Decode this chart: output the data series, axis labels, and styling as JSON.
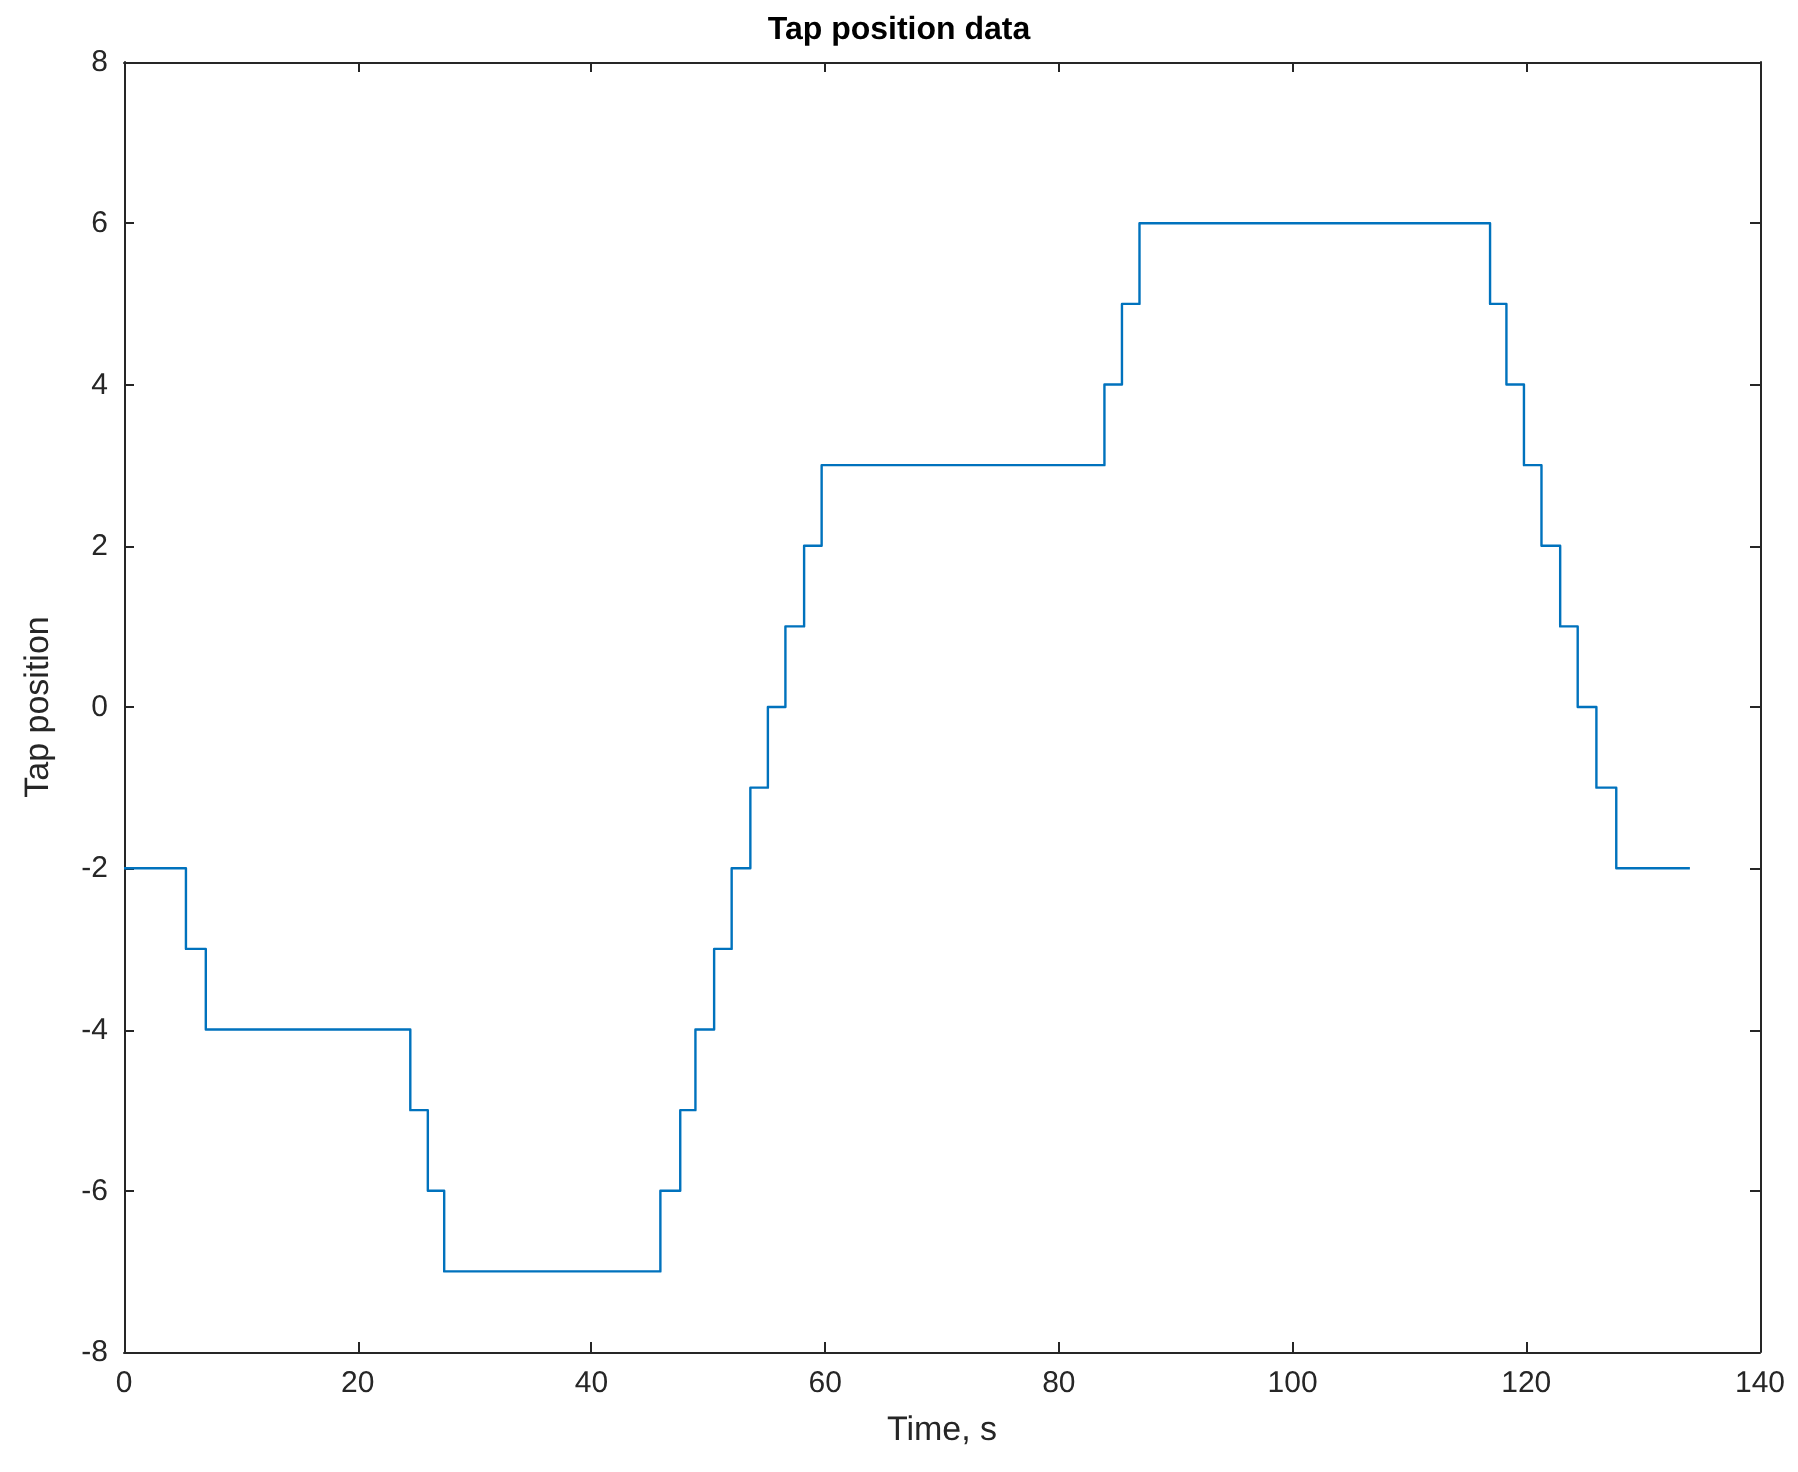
{
  "chart_data": {
    "type": "step",
    "title": "Tap position data",
    "xlabel": "Time, s",
    "ylabel": "Tap position",
    "xlim": [
      0,
      140
    ],
    "xticks": [
      0,
      20,
      40,
      60,
      80,
      100,
      120,
      140
    ],
    "ylim": [
      -8,
      8
    ],
    "yticks": [
      -8,
      -6,
      -4,
      -2,
      0,
      2,
      4,
      6,
      8
    ],
    "grid": false,
    "marker": "none",
    "line_style": "solid",
    "series": [
      {
        "color": "#0072bd",
        "x": [
          0,
          5.3,
          7,
          24.5,
          26,
          27.4,
          45.9,
          47.6,
          48.9,
          50.5,
          52,
          53.6,
          55.1,
          56.6,
          58.2,
          59.7,
          83.9,
          85.4,
          86.9,
          116.9,
          118.3,
          119.8,
          121.3,
          122.9,
          124.4,
          126,
          127.7,
          134
        ],
        "values": [
          -2,
          -3,
          -4,
          -5,
          -6,
          -7,
          -6,
          -5,
          -4,
          -3,
          -2,
          -1,
          0,
          1,
          2,
          3,
          4,
          5,
          6,
          5,
          4,
          3,
          2,
          1,
          0,
          -1,
          -2,
          -2
        ]
      }
    ]
  }
}
